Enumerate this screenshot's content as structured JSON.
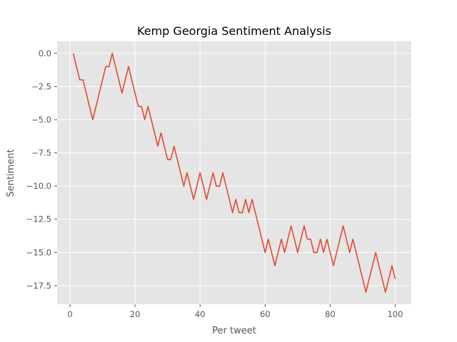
{
  "chart_data": {
    "type": "line",
    "title": "Kemp Georgia Sentiment Analysis",
    "xlabel": "Per tweet",
    "ylabel": "Sentiment",
    "xlim": [
      -3.95,
      104.95
    ],
    "ylim": [
      -18.9,
      0.9
    ],
    "xticks": [
      0,
      20,
      40,
      60,
      80,
      100
    ],
    "yticks": [
      0.0,
      -2.5,
      -5.0,
      -7.5,
      -10.0,
      -12.5,
      -15.0,
      -17.5
    ],
    "xtick_labels": [
      "0",
      "20",
      "40",
      "60",
      "80",
      "100"
    ],
    "ytick_labels": [
      "0.0",
      "−2.5",
      "−5.0",
      "−7.5",
      "−10.0",
      "−12.5",
      "−15.0",
      "−17.5"
    ],
    "grid": true,
    "background": "#e5e5e5",
    "series_color": "#e24a33",
    "x": [
      1,
      2,
      3,
      4,
      5,
      6,
      7,
      8,
      9,
      10,
      11,
      12,
      13,
      14,
      15,
      16,
      17,
      18,
      19,
      20,
      21,
      22,
      23,
      24,
      25,
      26,
      27,
      28,
      29,
      30,
      31,
      32,
      33,
      34,
      35,
      36,
      37,
      38,
      39,
      40,
      41,
      42,
      43,
      44,
      45,
      46,
      47,
      48,
      49,
      50,
      51,
      52,
      53,
      54,
      55,
      56,
      57,
      58,
      59,
      60,
      61,
      62,
      63,
      64,
      65,
      66,
      67,
      68,
      69,
      70,
      71,
      72,
      73,
      74,
      75,
      76,
      77,
      78,
      79,
      80,
      81,
      82,
      83,
      84,
      85,
      86,
      87,
      88,
      89,
      90,
      91,
      92,
      93,
      94,
      95,
      96,
      97,
      98,
      99,
      100
    ],
    "y": [
      0,
      -1,
      -2,
      -2,
      -3,
      -4,
      -5,
      -4,
      -3,
      -2,
      -1,
      -1,
      0,
      -1,
      -2,
      -3,
      -2,
      -1,
      -2,
      -3,
      -4,
      -4,
      -5,
      -4,
      -5,
      -6,
      -7,
      -6,
      -7,
      -8,
      -8,
      -7,
      -8,
      -9,
      -10,
      -9,
      -10,
      -11,
      -10,
      -9,
      -10,
      -11,
      -10,
      -9,
      -10,
      -10,
      -9,
      -10,
      -11,
      -12,
      -11,
      -12,
      -12,
      -11,
      -12,
      -11,
      -12,
      -13,
      -14,
      -15,
      -14,
      -15,
      -16,
      -15,
      -14,
      -15,
      -14,
      -13,
      -14,
      -15,
      -14,
      -13,
      -14,
      -14,
      -15,
      -15,
      -14,
      -15,
      -14,
      -15,
      -16,
      -15,
      -14,
      -13,
      -14,
      -15,
      -14,
      -15,
      -16,
      -17,
      -18,
      -17,
      -16,
      -15,
      -16,
      -17,
      -18,
      -17,
      -16,
      -17
    ]
  }
}
